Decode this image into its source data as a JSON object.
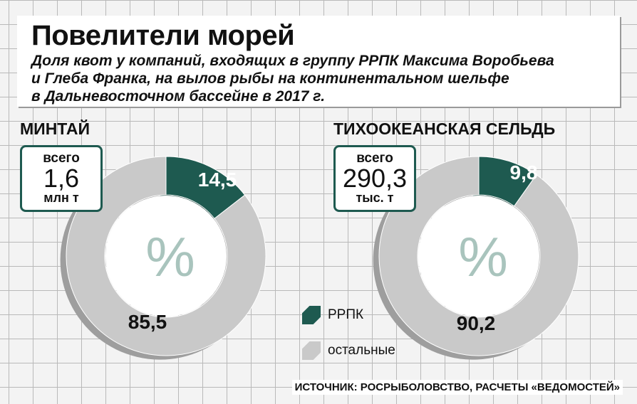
{
  "header": {
    "title": "Повелители морей",
    "subtitle_lines": [
      "Доля квот у компаний, входящих в группу РРПК Максима Воробьева",
      "и Глеба Франка, на вылов рыбы на континентальном  шельфе",
      "в Дальневосточном бассейне в 2017 г."
    ]
  },
  "percent_sign": "%",
  "legend": [
    {
      "label": "РРПК",
      "color": "#1e5a50"
    },
    {
      "label": "остальные",
      "color": "#c9c9c9"
    }
  ],
  "source": "ИСТОЧНИК: РОСРЫБОЛОВСТВО, РАСЧЕТЫ «ВЕДОМОСТЕЙ»",
  "chart_data": [
    {
      "type": "pie",
      "title": "МИНТАЙ",
      "total": {
        "label": "всего",
        "value": "1,6",
        "unit": "млн т"
      },
      "categories": [
        "РРПК",
        "остальные"
      ],
      "values": [
        14.5,
        85.5
      ],
      "value_labels": [
        "14,5",
        "85,5"
      ],
      "colors": [
        "#1e5a50",
        "#c9c9c9"
      ]
    },
    {
      "type": "pie",
      "title": "ТИХООКЕАНСКАЯ СЕЛЬДЬ",
      "total": {
        "label": "всего",
        "value": "290,3",
        "unit": "тыс. т"
      },
      "categories": [
        "РРПК",
        "остальные"
      ],
      "values": [
        9.8,
        90.2
      ],
      "value_labels": [
        "9,8",
        "90,2"
      ],
      "colors": [
        "#1e5a50",
        "#c9c9c9"
      ]
    }
  ]
}
